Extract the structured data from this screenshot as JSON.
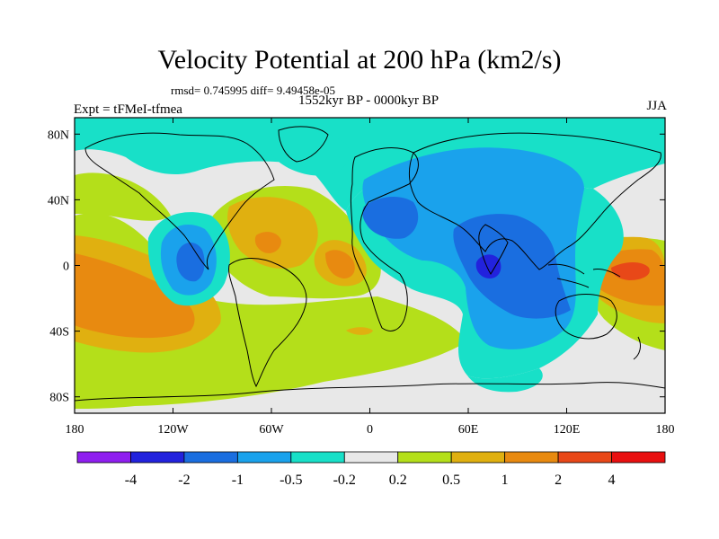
{
  "title": "Velocity Potential at 200 hPa (km2/s)",
  "stats_line": "rmsd= 0.745995 diff= 9.49458e-05",
  "period_label": "1552kyr BP - 0000kyr BP",
  "experiment_label": "Expt = tFMeI-tfmea",
  "season_label": "JJA",
  "map": {
    "projection": "cylindrical equidistant",
    "lon_range": [
      -180,
      180
    ],
    "lat_range": [
      -90,
      90
    ],
    "lat_ticks": [
      {
        "value": 80,
        "label": "80N"
      },
      {
        "value": 40,
        "label": "40N"
      },
      {
        "value": 0,
        "label": "0"
      },
      {
        "value": -40,
        "label": "40S"
      },
      {
        "value": -80,
        "label": "80S"
      }
    ],
    "lon_ticks": [
      {
        "value": -180,
        "label": "180"
      },
      {
        "value": -120,
        "label": "120W"
      },
      {
        "value": -60,
        "label": "60W"
      },
      {
        "value": 0,
        "label": "0"
      },
      {
        "value": 60,
        "label": "60E"
      },
      {
        "value": 120,
        "label": "120E"
      },
      {
        "value": 180,
        "label": "180"
      }
    ]
  },
  "colorbar": {
    "colors": [
      "#8f1ff0",
      "#2222dd",
      "#1a6ee0",
      "#1aa2ec",
      "#18e0c8",
      "#e8e8e8",
      "#b4df1a",
      "#e0b010",
      "#e88a10",
      "#e84818",
      "#e81010"
    ],
    "labels": [
      "-4",
      "-2",
      "-1",
      "-0.5",
      "-0.2",
      "0.2",
      "0.5",
      "1",
      "2",
      "4"
    ]
  },
  "colors": {
    "land_outline": "#000000"
  }
}
